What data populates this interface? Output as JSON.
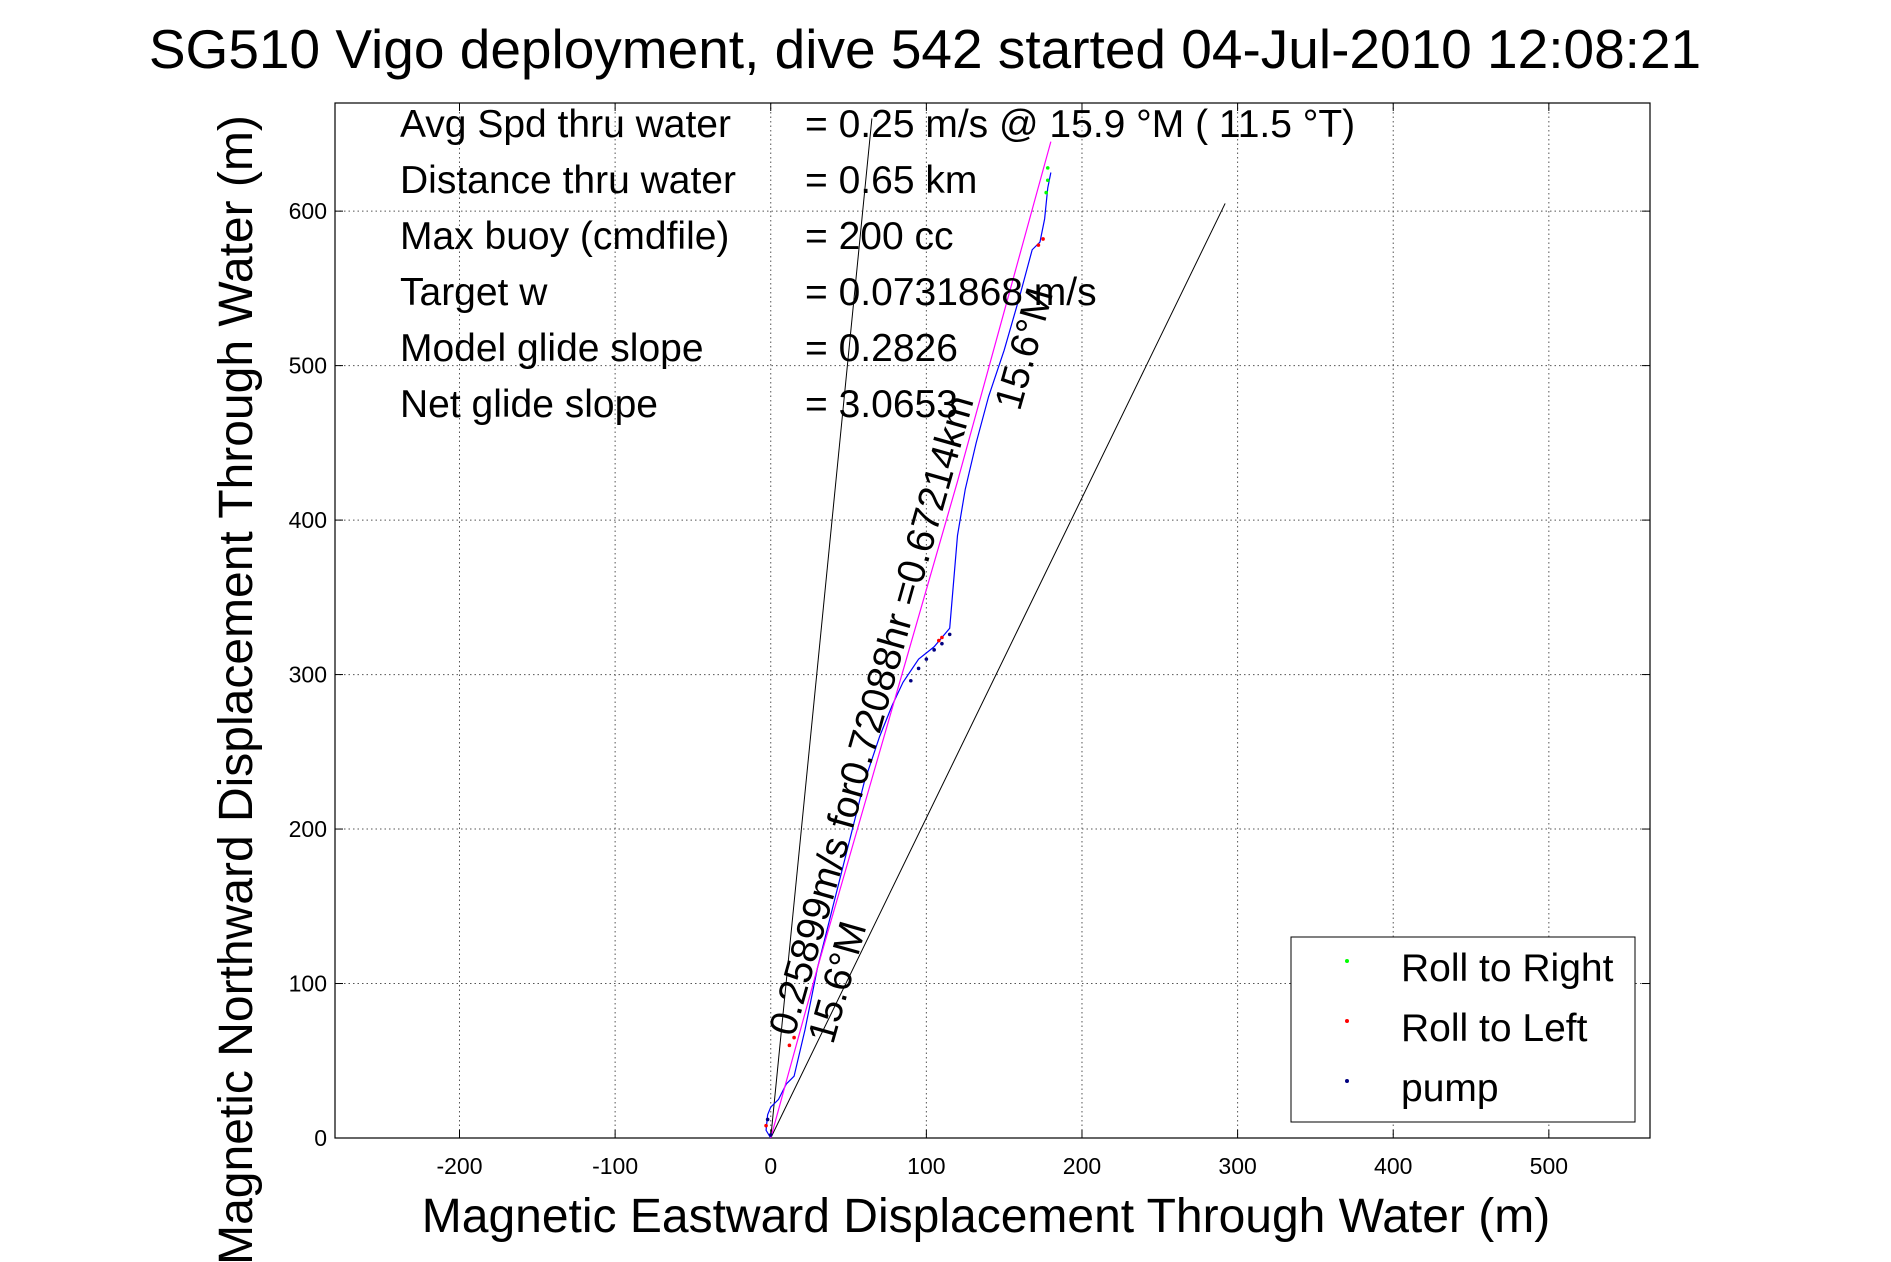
{
  "chart_data": {
    "type": "line",
    "title": "SG510 Vigo deployment, dive 542 started 04-Jul-2010 12:08:21",
    "xlabel": "Magnetic Eastward Displacement Through Water (m)",
    "ylabel": "Magnetic Northward Displacement Through Water (m)",
    "xlim": [
      -280,
      565
    ],
    "ylim": [
      0,
      670
    ],
    "xticks": [
      -200,
      -100,
      0,
      100,
      200,
      300,
      400,
      500
    ],
    "yticks": [
      0,
      100,
      200,
      300,
      400,
      500,
      600
    ],
    "grid": true,
    "legend_position": "bottom-right",
    "info_lines": [
      {
        "label": "Avg Spd thru water",
        "value": "=  0.25 m/s @   15.9 °M ( 11.5 °T)"
      },
      {
        "label": "Distance thru water",
        "value": "=  0.65 km"
      },
      {
        "label": "Max buoy (cmdfile)",
        "value": "= 200 cc"
      },
      {
        "label": "Target w",
        "value": "= 0.0731868 m/s"
      },
      {
        "label": "Model glide slope",
        "value": "= 0.2826"
      },
      {
        "label": "Net glide slope",
        "value": "= 3.0653"
      }
    ],
    "path_labels": [
      {
        "text": "0.25899m/s for0.72088hr =0.67214km",
        "x": 15,
        "y": 65
      },
      {
        "text": "15.6°M",
        "x": 40,
        "y": 60
      },
      {
        "text": "15.6°M",
        "x": 160,
        "y": 470
      }
    ],
    "guide_lines": [
      {
        "name": "left-bound",
        "x": [
          0,
          65
        ],
        "y": [
          0,
          660
        ]
      },
      {
        "name": "right-bound",
        "x": [
          0,
          292
        ],
        "y": [
          0,
          605
        ]
      }
    ],
    "series": [
      {
        "name": "track",
        "color": "#0000ff",
        "x": [
          0,
          -3,
          -2,
          0,
          5,
          10,
          15,
          22,
          30,
          40,
          50,
          60,
          70,
          78,
          85,
          95,
          105,
          115,
          120,
          125,
          132,
          140,
          150,
          160,
          168,
          173,
          176,
          178,
          180
        ],
        "y": [
          0,
          5,
          15,
          20,
          25,
          35,
          40,
          70,
          110,
          150,
          190,
          230,
          260,
          280,
          295,
          310,
          318,
          330,
          390,
          420,
          450,
          480,
          510,
          545,
          575,
          580,
          595,
          615,
          625
        ]
      },
      {
        "name": "heading-line",
        "color": "#ff00ff",
        "x": [
          0,
          30,
          60,
          90,
          120,
          150,
          180
        ],
        "y": [
          0,
          110,
          215,
          320,
          425,
          535,
          645
        ]
      }
    ],
    "legend": [
      {
        "label": "Roll to Right",
        "color": "#00ff00"
      },
      {
        "label": "Roll to Left",
        "color": "#ff0000"
      },
      {
        "label": "pump",
        "color": "#000080"
      }
    ],
    "marker_series": [
      {
        "name": "Roll to Right",
        "color": "#00ff00",
        "x": [
          178,
          178,
          177
        ],
        "y": [
          628,
          620,
          612
        ]
      },
      {
        "name": "Roll to Left",
        "color": "#ff0000",
        "x": [
          -3,
          172,
          175,
          108,
          110,
          12,
          15
        ],
        "y": [
          8,
          578,
          582,
          322,
          324,
          60,
          65
        ]
      },
      {
        "name": "pump",
        "color": "#000080",
        "x": [
          -2,
          90,
          95,
          100,
          105,
          110,
          115,
          0
        ],
        "y": [
          12,
          296,
          304,
          310,
          316,
          320,
          326,
          2
        ]
      }
    ]
  }
}
